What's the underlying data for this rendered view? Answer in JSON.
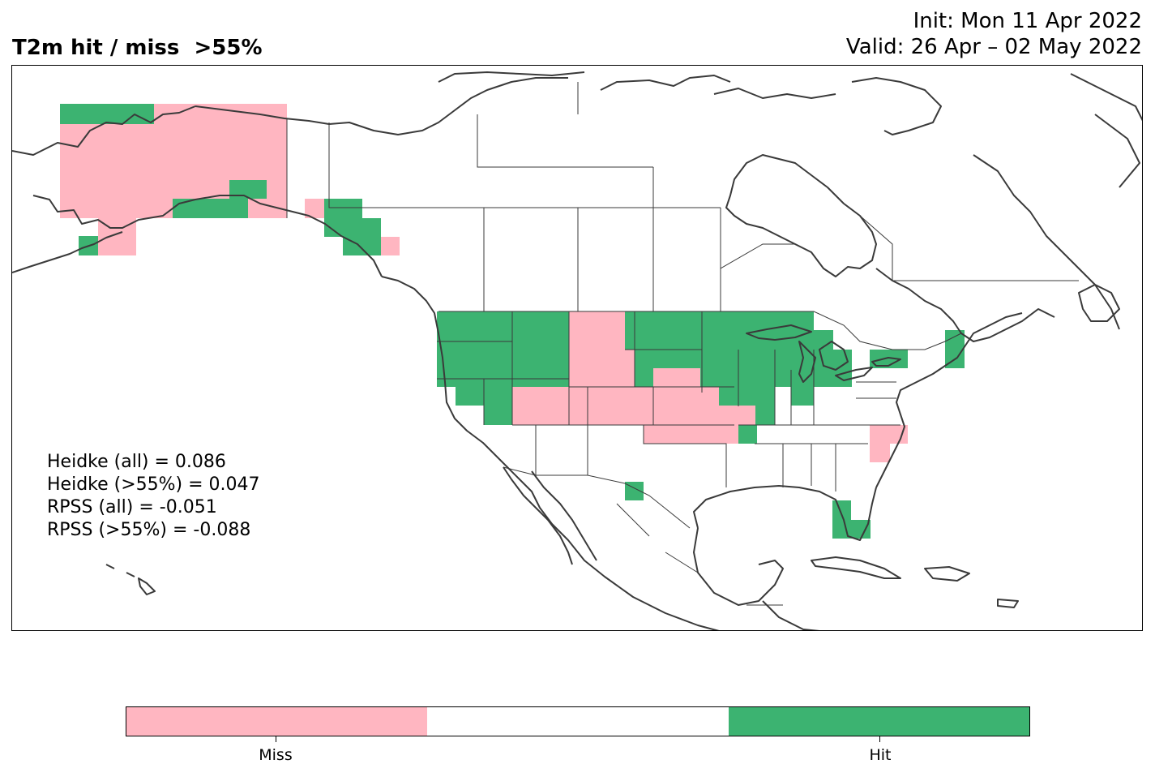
{
  "title": "T2m hit / miss  >55%",
  "init_line": "Init: Mon 11 Apr 2022",
  "valid_line": "Valid: 26 Apr – 02 May 2022",
  "colors": {
    "miss": "#ffb6c1",
    "neutral": "#ffffff",
    "hit": "#3cb371",
    "coast": "#3a3a3a"
  },
  "stats": [
    "Heidke (all) = 0.086",
    "Heidke (>55%) = 0.047",
    "RPSS (all) = -0.051",
    "RPSS (>55%) = -0.088"
  ],
  "colorbar": {
    "labels": [
      "Miss",
      "Hit"
    ]
  }
}
